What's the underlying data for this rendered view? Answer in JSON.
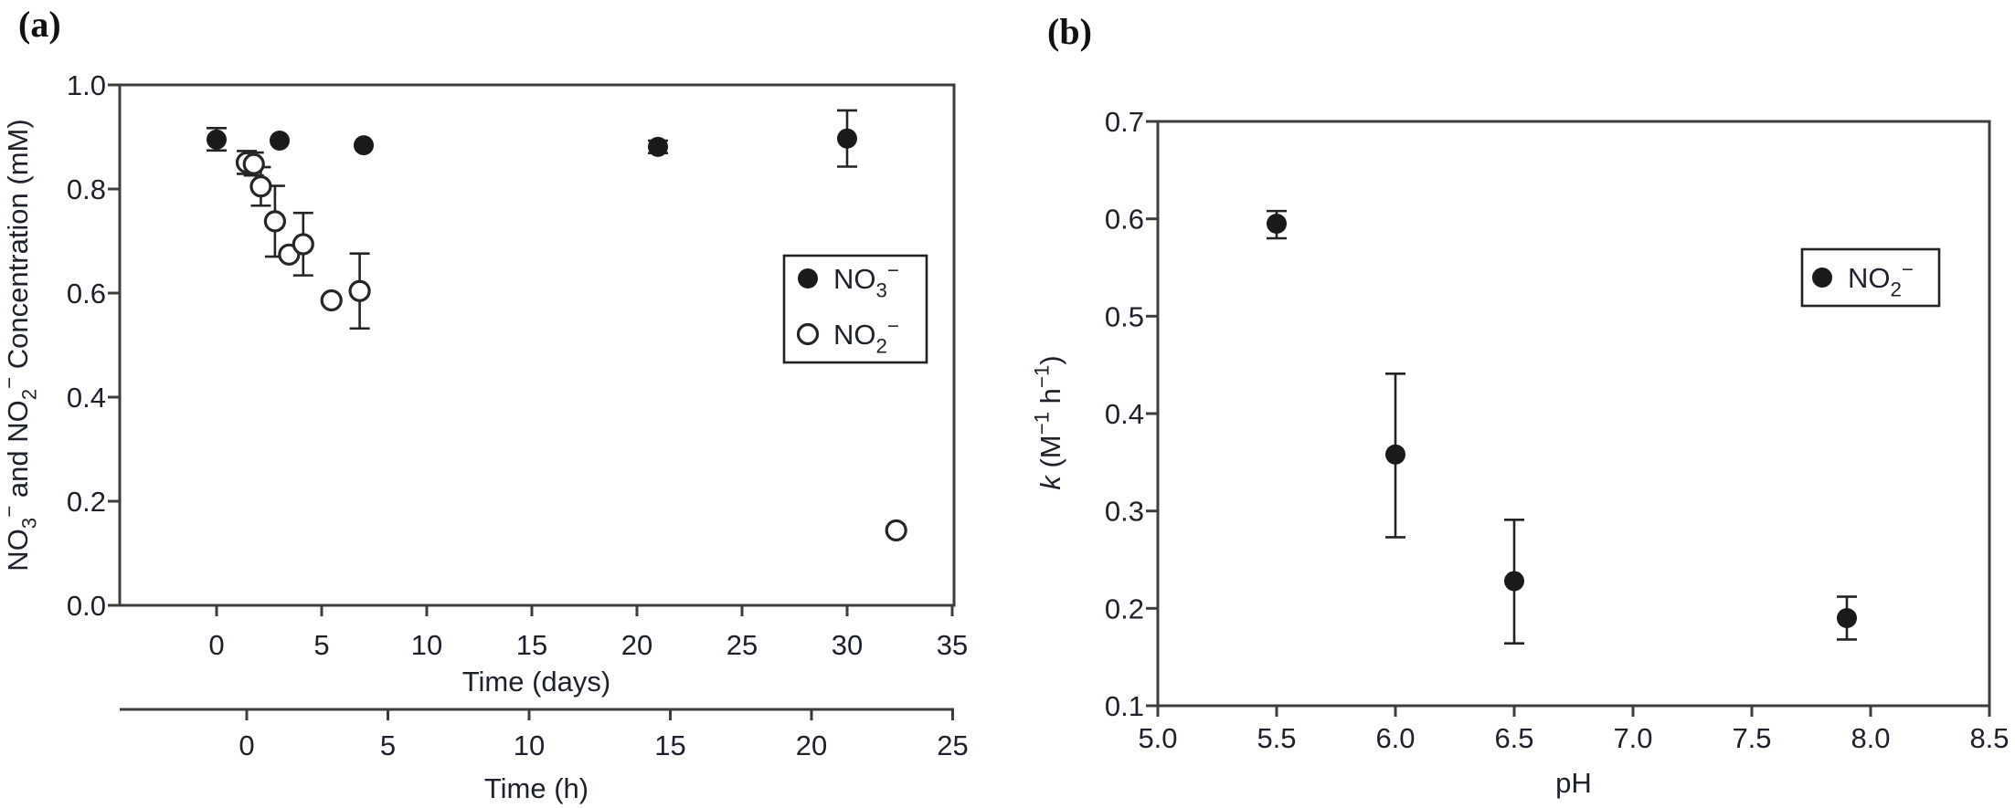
{
  "figure": {
    "panel_a_label": "(a)",
    "panel_b_label": "(b)",
    "background_color": "#ffffff",
    "ink_color": "#1a1a1a",
    "axis_color": "#3d3d3d"
  },
  "chart_data": [
    {
      "id": "a",
      "type": "scatter",
      "panel_label": "(a)",
      "ylabel": "NO3− and NO2− Concentration (mM)",
      "ylabel_segments": [
        {
          "t": "NO"
        },
        {
          "t": "3",
          "pos": "sub"
        },
        {
          "t": "−",
          "pos": "sup"
        },
        {
          "t": " and NO"
        },
        {
          "t": "2",
          "pos": "sub"
        },
        {
          "t": "−",
          "pos": "sup"
        },
        {
          "t": " Concentration (mM)"
        }
      ],
      "ylim": [
        0.0,
        1.0
      ],
      "yticks": [
        {
          "v": 0.0,
          "label": "0.0"
        },
        {
          "v": 0.2,
          "label": "0.2"
        },
        {
          "v": 0.4,
          "label": "0.4"
        },
        {
          "v": 0.6,
          "label": "0.6"
        },
        {
          "v": 0.8,
          "label": "0.8"
        },
        {
          "v": 1.0,
          "label": "1.0"
        }
      ],
      "xaxes": [
        {
          "id": "days",
          "label": "Time (days)",
          "lim": [
            -4.7,
            35.3
          ],
          "ticks": [
            {
              "v": 0,
              "label": "0"
            },
            {
              "v": 5,
              "label": "5"
            },
            {
              "v": 10,
              "label": "10"
            },
            {
              "v": 15,
              "label": "15"
            },
            {
              "v": 20,
              "label": "20"
            },
            {
              "v": 25,
              "label": "25"
            },
            {
              "v": 30,
              "label": "30"
            },
            {
              "v": 35,
              "label": "35"
            }
          ]
        },
        {
          "id": "hours",
          "label": "Time (h)",
          "lim": [
            -4.5,
            25.1
          ],
          "ticks": [
            {
              "v": 0,
              "label": "0"
            },
            {
              "v": 5,
              "label": "5"
            },
            {
              "v": 10,
              "label": "10"
            },
            {
              "v": 15,
              "label": "15"
            },
            {
              "v": 20,
              "label": "20"
            },
            {
              "v": 25,
              "label": "25"
            }
          ]
        }
      ],
      "legend": {
        "position": "right-middle",
        "series_ids": [
          "no3",
          "no2"
        ]
      },
      "series": [
        {
          "id": "no3",
          "label": "NO3−",
          "label_segments": [
            {
              "t": "NO"
            },
            {
              "t": "3",
              "pos": "sub"
            },
            {
              "t": "−",
              "pos": "sup"
            }
          ],
          "marker": "filled-circle",
          "xaxis": "days",
          "points": [
            {
              "x": 0,
              "y": 0.895,
              "err_lo": 0.874,
              "err_hi": 0.917
            },
            {
              "x": 3,
              "y": 0.893
            },
            {
              "x": 7,
              "y": 0.884
            },
            {
              "x": 21,
              "y": 0.881,
              "err_lo": 0.869,
              "err_hi": 0.893
            },
            {
              "x": 30,
              "y": 0.897,
              "err_lo": 0.843,
              "err_hi": 0.951
            }
          ]
        },
        {
          "id": "no2",
          "label": "NO2−",
          "label_segments": [
            {
              "t": "NO"
            },
            {
              "t": "2",
              "pos": "sub"
            },
            {
              "t": "−",
              "pos": "sup"
            }
          ],
          "marker": "open-circle",
          "xaxis": "hours",
          "points": [
            {
              "x": 0,
              "y": 0.851,
              "err_lo": 0.829,
              "err_hi": 0.873
            },
            {
              "x": 0.25,
              "y": 0.848,
              "err_lo": 0.826,
              "err_hi": 0.87
            },
            {
              "x": 0.5,
              "y": 0.805,
              "err_lo": 0.768,
              "err_hi": 0.842
            },
            {
              "x": 1,
              "y": 0.738,
              "err_lo": 0.67,
              "err_hi": 0.806
            },
            {
              "x": 1.5,
              "y": 0.674
            },
            {
              "x": 2,
              "y": 0.694,
              "err_lo": 0.634,
              "err_hi": 0.754
            },
            {
              "x": 3,
              "y": 0.586
            },
            {
              "x": 4,
              "y": 0.604,
              "err_lo": 0.532,
              "err_hi": 0.676
            },
            {
              "x": 23,
              "y": 0.144
            }
          ]
        }
      ]
    },
    {
      "id": "b",
      "type": "scatter",
      "panel_label": "(b)",
      "xlabel": "pH",
      "ylabel": "k (M−1 h−1)",
      "ylabel_segments": [
        {
          "t": "k",
          "style": "italic"
        },
        {
          "t": " (M"
        },
        {
          "t": "−1",
          "pos": "sup"
        },
        {
          "t": " h"
        },
        {
          "t": "−1",
          "pos": "sup"
        },
        {
          "t": ")"
        }
      ],
      "ylim": [
        0.1,
        0.7
      ],
      "yticks": [
        {
          "v": 0.1,
          "label": "0.1"
        },
        {
          "v": 0.2,
          "label": "0.2"
        },
        {
          "v": 0.3,
          "label": "0.3"
        },
        {
          "v": 0.4,
          "label": "0.4"
        },
        {
          "v": 0.5,
          "label": "0.5"
        },
        {
          "v": 0.6,
          "label": "0.6"
        },
        {
          "v": 0.7,
          "label": "0.7"
        }
      ],
      "xlim": [
        5.0,
        8.5
      ],
      "xticks": [
        {
          "v": 5.0,
          "label": "5.0"
        },
        {
          "v": 5.5,
          "label": "5.5"
        },
        {
          "v": 6.0,
          "label": "6.0"
        },
        {
          "v": 6.5,
          "label": "6.5"
        },
        {
          "v": 7.0,
          "label": "7.0"
        },
        {
          "v": 7.5,
          "label": "7.5"
        },
        {
          "v": 8.0,
          "label": "8.0"
        },
        {
          "v": 8.5,
          "label": "8.5"
        }
      ],
      "legend": {
        "position": "right-upper",
        "series_ids": [
          "no2b"
        ]
      },
      "series": [
        {
          "id": "no2b",
          "label": "NO2−",
          "label_segments": [
            {
              "t": "NO"
            },
            {
              "t": "2",
              "pos": "sub"
            },
            {
              "t": "−",
              "pos": "sup"
            }
          ],
          "marker": "filled-circle",
          "xaxis": "ph",
          "points": [
            {
              "x": 5.5,
              "y": 0.595,
              "err_lo": 0.58,
              "err_hi": 0.608
            },
            {
              "x": 6.0,
              "y": 0.358,
              "err_lo": 0.273,
              "err_hi": 0.441
            },
            {
              "x": 6.5,
              "y": 0.228,
              "err_lo": 0.164,
              "err_hi": 0.291
            },
            {
              "x": 7.9,
              "y": 0.19,
              "err_lo": 0.168,
              "err_hi": 0.212
            }
          ]
        }
      ]
    }
  ]
}
